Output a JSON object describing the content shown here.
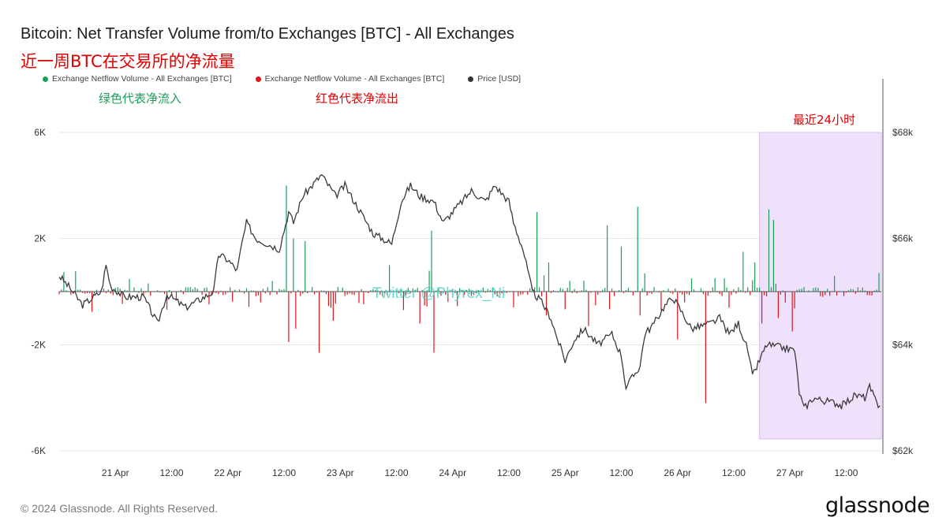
{
  "header": {
    "title": "Bitcoin: Net Transfer Volume from/to Exchanges [BTC] - All Exchanges",
    "subtitle": "近一周BTC在交易所的净流量"
  },
  "annotations": {
    "green_note": "绿色代表净流入",
    "red_note": "红色代表净流出",
    "last_24h": "最近24小时",
    "watermark": "Twitter @Phyrex_Ni"
  },
  "footer": {
    "copyright": "© 2024 Glassnode. All Rights Reserved.",
    "logo": "glassnode"
  },
  "colors": {
    "inflow": "#1b9e5a",
    "outflow": "#e0161c",
    "price": "#3a3a3a",
    "highlight": "#efe0fb"
  },
  "chart_data": {
    "type": "bar",
    "legend": [
      {
        "label": "Exchange Netflow Volume - All Exchanges [BTC]",
        "color": "#1b9e5a"
      },
      {
        "label": "Exchange Netflow Volume - All Exchanges [BTC]",
        "color": "#e0161c"
      },
      {
        "label": "Price [USD]",
        "color": "#333333"
      }
    ],
    "x_ticks": [
      "21 Apr",
      "12:00",
      "22 Apr",
      "12:00",
      "23 Apr",
      "12:00",
      "24 Apr",
      "12:00",
      "25 Apr",
      "12:00",
      "26 Apr",
      "12:00",
      "27 Apr",
      "12:00"
    ],
    "x_tick_hours": [
      12,
      24,
      36,
      48,
      60,
      72,
      84,
      96,
      108,
      120,
      132,
      144,
      156,
      168
    ],
    "x_range_hours": [
      0,
      175.5
    ],
    "y_left_ticks": [
      "6K",
      "2K",
      "-2K",
      "-6K"
    ],
    "y_left_tick_values": [
      6000,
      2000,
      -2000,
      -6000
    ],
    "y_left_range": [
      -6000,
      6000
    ],
    "y_right_ticks": [
      "$68k",
      "$66k",
      "$64k",
      "$62k"
    ],
    "y_right_tick_values": [
      68000,
      66000,
      64000,
      62000
    ],
    "y_right_range": [
      62000,
      68000
    ],
    "highlight_range_hours": [
      149.5,
      175.5
    ],
    "netflow_spikes": [
      {
        "h": 48.5,
        "v": 4000
      },
      {
        "h": 49.8,
        "v": 2000
      },
      {
        "h": 52.5,
        "v": 1900
      },
      {
        "h": 45.5,
        "v": 400
      },
      {
        "h": 70.5,
        "v": 1000
      },
      {
        "h": 79.5,
        "v": 2300
      },
      {
        "h": 102,
        "v": 3000
      },
      {
        "h": 104.5,
        "v": 1100
      },
      {
        "h": 117,
        "v": 2500
      },
      {
        "h": 120,
        "v": 1700
      },
      {
        "h": 123.5,
        "v": 3200
      },
      {
        "h": 135,
        "v": 500
      },
      {
        "h": 146,
        "v": 1500
      },
      {
        "h": 148.5,
        "v": 1100
      },
      {
        "h": 151.5,
        "v": 3100
      },
      {
        "h": 152.5,
        "v": 2700
      },
      {
        "h": 175,
        "v": 700
      },
      {
        "h": 142,
        "v": 500
      },
      {
        "h": 49.2,
        "v": -1900
      },
      {
        "h": 50.5,
        "v": -1400
      },
      {
        "h": 55.3,
        "v": -2300
      },
      {
        "h": 58.7,
        "v": -1100
      },
      {
        "h": 80.2,
        "v": -2300
      },
      {
        "h": 76.8,
        "v": -1200
      },
      {
        "h": 104,
        "v": -900
      },
      {
        "h": 113,
        "v": -1300
      },
      {
        "h": 124,
        "v": -900
      },
      {
        "h": 132.2,
        "v": -1800
      },
      {
        "h": 138,
        "v": -4200
      },
      {
        "h": 153.5,
        "v": -1000
      },
      {
        "h": 156.5,
        "v": -1500
      },
      {
        "h": 150.2,
        "v": -1200
      },
      {
        "h": 163,
        "v": -200
      }
    ],
    "price_keypoints": [
      [
        0,
        65300
      ],
      [
        2,
        65100
      ],
      [
        5,
        64750
      ],
      [
        9,
        65000
      ],
      [
        10,
        65500
      ],
      [
        11,
        65100
      ],
      [
        14,
        64900
      ],
      [
        18,
        64900
      ],
      [
        21,
        64400
      ],
      [
        23,
        64950
      ],
      [
        27,
        64700
      ],
      [
        33,
        65000
      ],
      [
        34,
        65700
      ],
      [
        36,
        65600
      ],
      [
        38,
        65400
      ],
      [
        39,
        65900
      ],
      [
        40,
        66300
      ],
      [
        42,
        66000
      ],
      [
        47,
        65800
      ],
      [
        49,
        66500
      ],
      [
        50,
        66300
      ],
      [
        52,
        66800
      ],
      [
        56,
        67200
      ],
      [
        59,
        66800
      ],
      [
        61,
        67000
      ],
      [
        63,
        66700
      ],
      [
        65,
        66400
      ],
      [
        67,
        66100
      ],
      [
        71,
        65900
      ],
      [
        73,
        66700
      ],
      [
        75,
        67000
      ],
      [
        77,
        66800
      ],
      [
        80,
        66700
      ],
      [
        82,
        66300
      ],
      [
        84,
        66500
      ],
      [
        88,
        66900
      ],
      [
        91,
        66700
      ],
      [
        93,
        67000
      ],
      [
        96,
        66700
      ],
      [
        97,
        66300
      ],
      [
        99,
        65800
      ],
      [
        101,
        65000
      ],
      [
        103,
        64800
      ],
      [
        105,
        64500
      ],
      [
        106,
        64200
      ],
      [
        108,
        63700
      ],
      [
        110,
        64100
      ],
      [
        112,
        64300
      ],
      [
        115,
        64000
      ],
      [
        118,
        64200
      ],
      [
        120,
        63800
      ],
      [
        121,
        63200
      ],
      [
        124,
        63600
      ],
      [
        125,
        64200
      ],
      [
        127,
        64400
      ],
      [
        129,
        64700
      ],
      [
        131,
        64900
      ],
      [
        133,
        64600
      ],
      [
        135,
        64300
      ],
      [
        139,
        64400
      ],
      [
        141,
        64500
      ],
      [
        143,
        64200
      ],
      [
        145,
        64400
      ],
      [
        147,
        63900
      ],
      [
        148,
        63400
      ],
      [
        149.5,
        63700
      ],
      [
        151,
        64000
      ],
      [
        154,
        63950
      ],
      [
        157,
        63900
      ],
      [
        158,
        63100
      ],
      [
        159,
        62800
      ],
      [
        161,
        63000
      ],
      [
        163,
        62950
      ],
      [
        166,
        62900
      ],
      [
        167,
        62850
      ],
      [
        170,
        63050
      ],
      [
        172,
        63000
      ],
      [
        173,
        63200
      ],
      [
        174.5,
        62900
      ],
      [
        175.2,
        62850
      ]
    ]
  }
}
